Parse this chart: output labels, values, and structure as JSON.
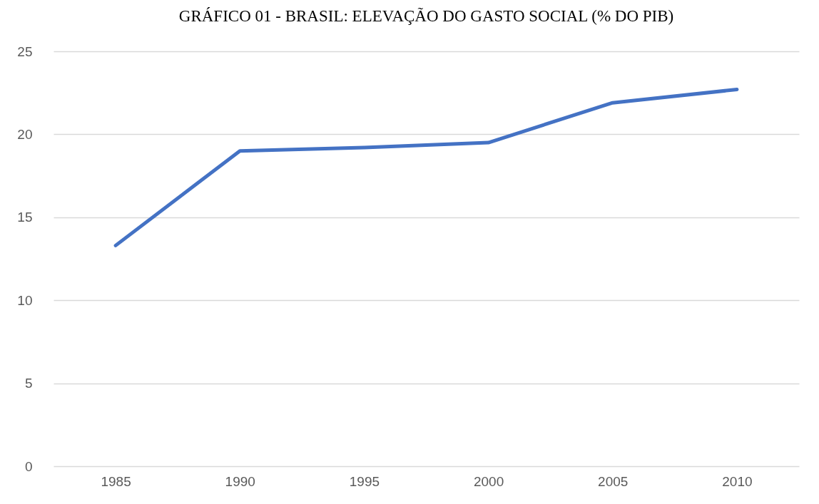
{
  "chart_data": {
    "type": "line",
    "title": "GRÁFICO 01 - BRASIL: ELEVAÇÃO DO GASTO SOCIAL (% DO PIB)",
    "categories": [
      "1985",
      "1990",
      "1995",
      "2000",
      "2005",
      "2010"
    ],
    "series": [
      {
        "color": "#4472c4",
        "values": [
          13.3,
          19.0,
          19.2,
          19.5,
          21.9,
          22.7
        ]
      }
    ],
    "ylim": [
      0,
      25
    ],
    "yticks": [
      0,
      5,
      10,
      15,
      20,
      25
    ],
    "grid": "y",
    "marker": "none",
    "line_style": "solid"
  }
}
